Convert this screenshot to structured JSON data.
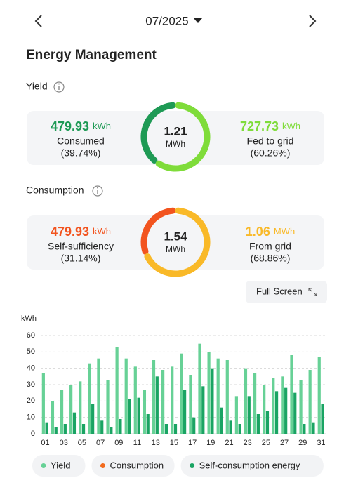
{
  "header": {
    "month": "07/2025"
  },
  "title": "Energy Management",
  "yield": {
    "label": "Yield",
    "total_value": "1.21",
    "total_unit": "MWh",
    "left": {
      "value": "479.93",
      "unit": "kWh",
      "label": "Consumed",
      "percent": 39.74,
      "percent_label": "(39.74%)",
      "color": "#1e9a55"
    },
    "right": {
      "value": "727.73",
      "unit": "kWh",
      "label": "Fed to grid",
      "percent": 60.26,
      "percent_label": "(60.26%)",
      "color": "#7fdc3a"
    }
  },
  "consumption": {
    "label": "Consumption",
    "total_value": "1.54",
    "total_unit": "MWh",
    "left": {
      "value": "479.93",
      "unit": "kWh",
      "label": "Self-sufficiency",
      "percent": 31.14,
      "percent_label": "(31.14%)",
      "color": "#f2541f"
    },
    "right": {
      "value": "1.06",
      "unit": "MWh",
      "label": "From grid",
      "percent": 68.86,
      "percent_label": "(68.86%)",
      "color": "#f9b928"
    }
  },
  "full_screen": "Full Screen",
  "chart_data": {
    "type": "bar",
    "y_unit": "kWh",
    "categories": [
      "01",
      null,
      "03",
      null,
      "05",
      null,
      "07",
      null,
      "09",
      null,
      "11",
      null,
      "13",
      null,
      "15",
      null,
      "17",
      null,
      "19",
      null,
      "21",
      null,
      "23",
      null,
      "25",
      null,
      "27",
      null,
      "29",
      null,
      "31"
    ],
    "series": [
      {
        "name": "Yield",
        "color": "#67d196",
        "values": [
          37,
          20,
          27,
          30,
          32,
          43,
          46,
          33,
          53,
          46,
          41,
          27,
          45,
          39,
          41,
          49,
          36,
          55,
          50,
          46,
          45,
          23,
          40,
          37,
          30,
          34,
          35,
          48,
          33,
          39,
          47
        ]
      },
      {
        "name": "Consumption",
        "color": "#f26b1d",
        "values": [
          null,
          null,
          null,
          null,
          null,
          null,
          null,
          null,
          null,
          null,
          null,
          null,
          null,
          null,
          null,
          null,
          null,
          null,
          null,
          null,
          null,
          null,
          null,
          null,
          null,
          null,
          null,
          null,
          null,
          null,
          null
        ]
      },
      {
        "name": "Self-consumption energy",
        "color": "#1aa463",
        "values": [
          7,
          4,
          6,
          13,
          6,
          18,
          8,
          4,
          9,
          21,
          22,
          12,
          35,
          6,
          6,
          27,
          10,
          29,
          40,
          16,
          8,
          6,
          23,
          12,
          14,
          26,
          28,
          25,
          6,
          7,
          18
        ]
      }
    ],
    "ylim": [
      0,
      60
    ],
    "yticks": [
      0,
      10,
      20,
      30,
      40,
      50,
      60
    ],
    "grid": true
  }
}
